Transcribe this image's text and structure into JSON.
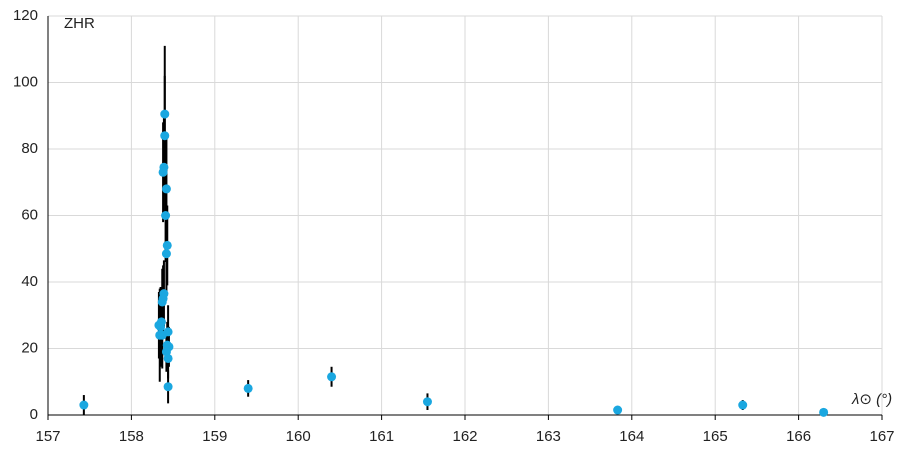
{
  "chart_data": {
    "type": "scatter",
    "y_label": "ZHR",
    "x_label": "λ⊙ (°)",
    "xlim": [
      157,
      167
    ],
    "ylim": [
      0,
      120
    ],
    "xticks": [
      157,
      158,
      159,
      160,
      161,
      162,
      163,
      164,
      165,
      166,
      167
    ],
    "yticks": [
      0,
      20,
      40,
      60,
      80,
      100,
      120
    ],
    "grid": true,
    "series": [
      {
        "color": "#1aa7e0",
        "error_color": "#000000",
        "x": [
          157.43,
          158.4,
          158.4,
          158.39,
          158.38,
          158.42,
          158.41,
          158.43,
          158.42,
          158.39,
          158.38,
          158.37,
          158.36,
          158.33,
          158.35,
          158.37,
          158.34,
          158.44,
          158.43,
          158.45,
          158.42,
          158.44,
          158.44,
          159.4,
          160.4,
          161.55,
          163.83,
          165.33,
          166.3
        ],
        "values": [
          3,
          90.5,
          84,
          74.5,
          73,
          68,
          60,
          51,
          48.5,
          36.5,
          35,
          34,
          28,
          27,
          26.5,
          24,
          24,
          25,
          21,
          20.5,
          19,
          17,
          8.5,
          8,
          11.5,
          4,
          1.5,
          3,
          0.8
        ],
        "errors": [
          3,
          20.5,
          18,
          15,
          15,
          15,
          14,
          12,
          12,
          10,
          10,
          10,
          10,
          10,
          12,
          10,
          14,
          8,
          7,
          6,
          6,
          6,
          5,
          2.5,
          3,
          2.5,
          0.5,
          1.5,
          0.5
        ]
      }
    ]
  }
}
